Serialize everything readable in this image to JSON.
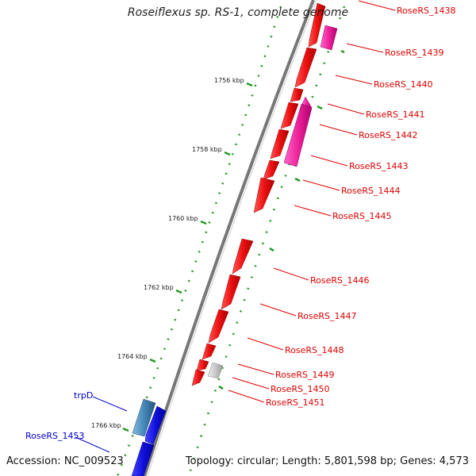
{
  "title": "Roseiflexus sp. RS-1, complete genome",
  "footer": {
    "accession": "Accession: NC_009523",
    "summary": "Topology: circular; Length: 5,801,598 bp; Genes: 4,573"
  },
  "colors": {
    "forward_gene": "#ee1111",
    "reverse_gene_pink": "#ee2299",
    "neutral_gene": "#c8c8c8",
    "highlight_blue": "#1111dd",
    "highlight_steel": "#4488bb",
    "backbone": "#888888",
    "tick_green": "#229922",
    "label_red": "#dd0000",
    "label_blue": "#0000cc"
  },
  "ticks": [
    "1756 kbp",
    "1758 kbp",
    "1760 kbp",
    "1762 kbp",
    "1764 kbp",
    "1766 kbp"
  ],
  "red_labels": [
    "RoseRS_1438",
    "RoseRS_1439",
    "RoseRS_1440",
    "RoseRS_1441",
    "RoseRS_1442",
    "RoseRS_1443",
    "RoseRS_1444",
    "RoseRS_1445",
    "RoseRS_1446",
    "RoseRS_1447",
    "RoseRS_1448",
    "RoseRS_1449",
    "RoseRS_1450",
    "RoseRS_1451"
  ],
  "blue_labels": [
    "trpD",
    "RoseRS_1453"
  ]
}
